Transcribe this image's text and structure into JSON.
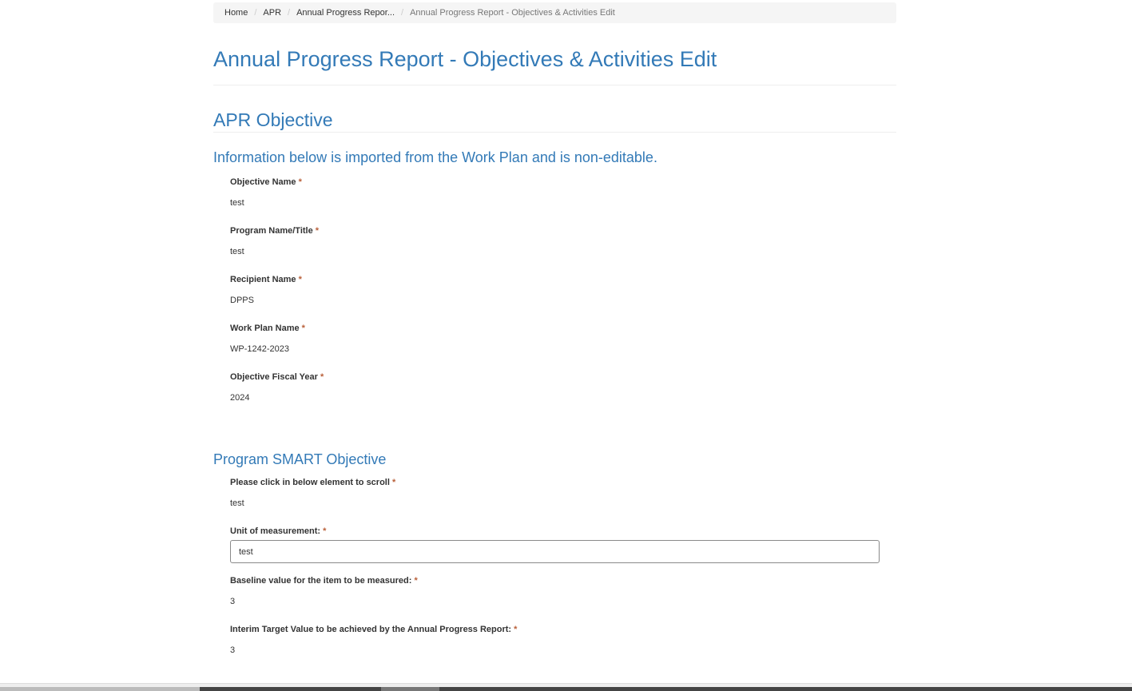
{
  "breadcrumb": [
    {
      "label": "Home"
    },
    {
      "label": "APR"
    },
    {
      "label": "Annual Progress Repor..."
    },
    {
      "label": "Annual Progress Report - Objectives & Activities Edit"
    }
  ],
  "page_title": "Annual Progress Report - Objectives & Activities Edit",
  "section1": {
    "title": "APR Objective",
    "subtitle": "Information below is imported from the Work Plan and is non-editable.",
    "fields": [
      {
        "label": "Objective Name",
        "value": "test"
      },
      {
        "label": "Program Name/Title",
        "value": "test"
      },
      {
        "label": "Recipient Name",
        "value": "DPPS"
      },
      {
        "label": "Work Plan Name",
        "value": "WP-1242-2023"
      },
      {
        "label": "Objective Fiscal Year",
        "value": "2024"
      }
    ]
  },
  "section2": {
    "title": "Program SMART Objective",
    "scroll_label": "Please click in below element to scroll",
    "scroll_value": "test",
    "unit_label": "Unit of measurement:",
    "unit_value": "test",
    "baseline_label": "Baseline value for the item to be measured:",
    "baseline_value": "3",
    "interim_label": "Interim Target Value to be achieved by the Annual Progress Report:",
    "interim_value": "3"
  },
  "required_marker": "*"
}
